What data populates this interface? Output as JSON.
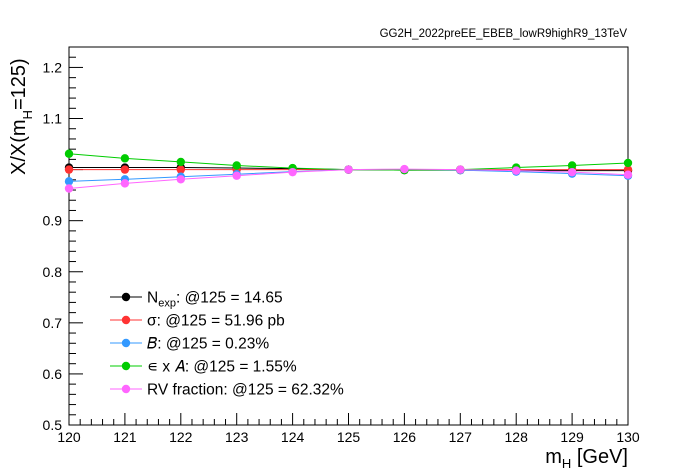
{
  "chart_data": {
    "type": "line",
    "title": "GG2H_2022preEE_EBEB_lowR9highR9_13TeV",
    "xlabel": {
      "main": "m",
      "sub": "H",
      "rest": " [GeV]"
    },
    "ylabel": {
      "pre": "X/X(m",
      "sub": "H",
      "post": "=125)"
    },
    "xlim": [
      120,
      130
    ],
    "ylim": [
      0.5,
      1.24
    ],
    "x_ticks": [
      "120",
      "121",
      "122",
      "123",
      "124",
      "125",
      "126",
      "127",
      "128",
      "129",
      "130"
    ],
    "y_ticks": [
      "0.5",
      "0.6",
      "0.7",
      "0.8",
      "0.9",
      "1.1",
      "1.2"
    ],
    "x": [
      120,
      121,
      122,
      123,
      124,
      125,
      126,
      127,
      128,
      129,
      130
    ],
    "series": [
      {
        "name": "Nexp",
        "color": "#000000",
        "legend": {
          "main": "N",
          "sub": "exp",
          "rest": ": @125 = 14.65"
        },
        "values": [
          1.004,
          1.004,
          1.004,
          1.003,
          1.002,
          1.0,
          0.999,
          0.999,
          0.998,
          0.998,
          0.998
        ]
      },
      {
        "name": "sigma",
        "color": "#ff3333",
        "legend": {
          "main": "σ",
          "sub": "",
          "rest": ": @125 = 51.96 pb"
        },
        "values": [
          1.0,
          1.0,
          1.0,
          1.0,
          1.0,
          1.0,
          1.0,
          1.0,
          1.0,
          1.0,
          1.0
        ]
      },
      {
        "name": "B",
        "color": "#3399ff",
        "legend": {
          "main": "𝐵",
          "sub": "",
          "rest": ": @125 = 0.23%"
        },
        "values": [
          0.977,
          0.981,
          0.986,
          0.991,
          0.996,
          1.0,
          1.0,
          0.999,
          0.996,
          0.992,
          0.988
        ]
      },
      {
        "name": "eff x acc",
        "color": "#00cc00",
        "legend": {
          "main": "∊ x  𝐴",
          "sub": "",
          "rest": ": @125 = 1.55%"
        },
        "values": [
          1.031,
          1.022,
          1.015,
          1.008,
          1.003,
          1.0,
          0.999,
          1.0,
          1.004,
          1.008,
          1.013
        ]
      },
      {
        "name": "RV fraction",
        "color": "#ff66ff",
        "legend": {
          "main": "RV fraction",
          "sub": "",
          "rest": ": @125 = 62.32%"
        },
        "values": [
          0.963,
          0.973,
          0.981,
          0.988,
          0.995,
          1.0,
          1.001,
          1.0,
          0.998,
          0.995,
          0.99
        ]
      }
    ],
    "legend_position": "bottom-left",
    "grid": false
  }
}
